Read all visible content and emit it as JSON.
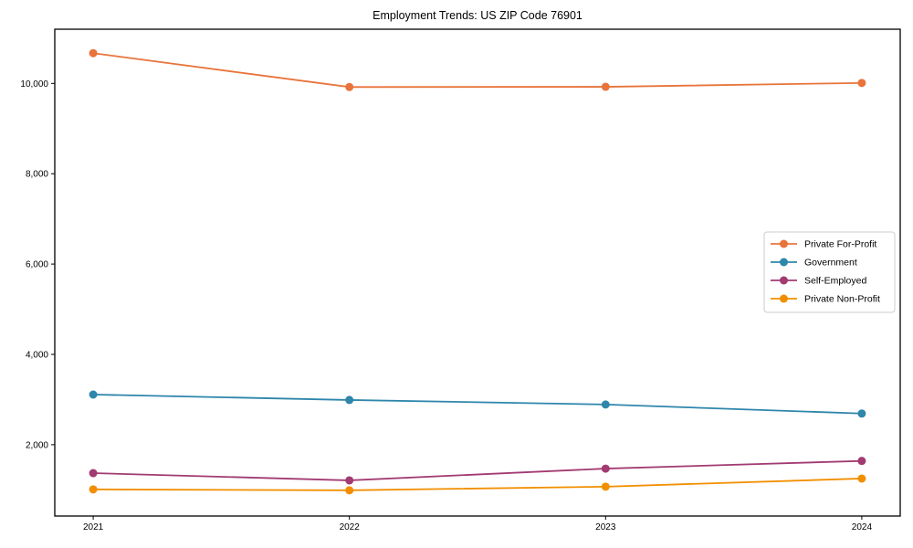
{
  "chart_data": {
    "type": "line",
    "title": "Employment Trends: US ZIP Code 76901",
    "x": [
      2021,
      2022,
      2023,
      2024
    ],
    "x_tick_labels": [
      "2021",
      "2022",
      "2023",
      "2024"
    ],
    "y_ticks": [
      2000,
      4000,
      6000,
      8000,
      10000
    ],
    "y_tick_labels": [
      "2,000",
      "4,000",
      "6,000",
      "8,000",
      "10,000"
    ],
    "series": [
      {
        "name": "Private For-Profit",
        "color": "#E8743B",
        "values": [
          10670,
          9920,
          9925,
          10010
        ]
      },
      {
        "name": "Government",
        "color": "#2E86AB",
        "values": [
          3110,
          2990,
          2890,
          2690
        ]
      },
      {
        "name": "Self-Employed",
        "color": "#A23B72",
        "values": [
          1370,
          1210,
          1470,
          1640
        ]
      },
      {
        "name": "Private Non-Profit",
        "color": "#F18F01",
        "values": [
          1010,
          990,
          1070,
          1250
        ]
      }
    ],
    "xlabel": "",
    "ylabel": "",
    "xlim": [
      2020.85,
      2024.15
    ],
    "ylim": [
      420,
      11200
    ],
    "grid": false,
    "legend_position": "right",
    "marker": "circle",
    "spine_color": "#000000",
    "legend_border_color": "#cccccc",
    "background_color": "#ffffff"
  }
}
